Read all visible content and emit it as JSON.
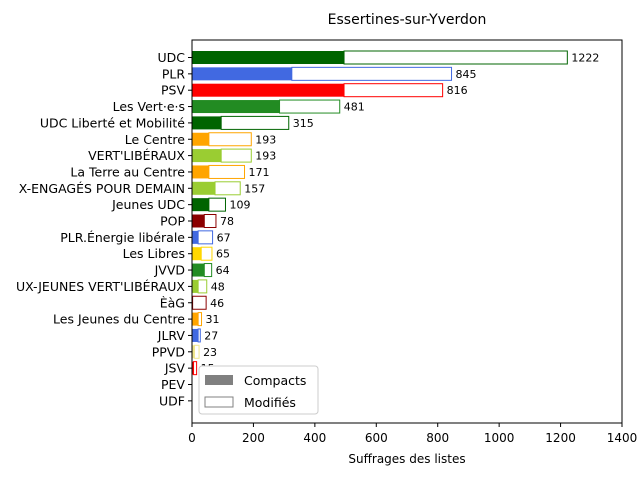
{
  "chart_data": {
    "type": "bar",
    "orientation": "horizontal",
    "stacked": "overlay",
    "title": "Essertines-sur-Yverdon",
    "xlabel": "Suffrages des listes",
    "ylabel": "",
    "xlim": [
      0,
      1400
    ],
    "xticks": [
      0,
      200,
      400,
      600,
      800,
      1000,
      1200,
      1400
    ],
    "grid": false,
    "legend": {
      "placement": "lower-left",
      "entries": [
        {
          "name": "Compacts",
          "style": "filled",
          "color": "#808080"
        },
        {
          "name": "Modifiés",
          "style": "outline",
          "color": "#808080"
        }
      ]
    },
    "categories": [
      "UDC",
      "PLR",
      "PSV",
      "Les Vert·e·s",
      "UDC Liberté et Mobilité",
      "Le Centre",
      "VERT'LIBÉRAUX",
      "La Terre au Centre",
      "X-ENGAGÉS POUR DEMAIN",
      "Jeunes UDC",
      "POP",
      "PLR.Énergie libérale",
      "Les Libres",
      "JVVD",
      "UX-JEUNES VERT'LIBÉRAUX",
      "ÈàG",
      "Les Jeunes du Centre",
      "JLRV",
      "PPVD",
      "JSV",
      "PEV",
      "UDF"
    ],
    "series": [
      {
        "name": "Compacts",
        "values": [
          495,
          325,
          495,
          285,
          95,
          55,
          95,
          55,
          75,
          55,
          40,
          20,
          30,
          40,
          20,
          2,
          20,
          20,
          8,
          5,
          0,
          0
        ]
      },
      {
        "name": "Modifiés",
        "values": [
          727,
          520,
          321,
          196,
          220,
          138,
          98,
          116,
          82,
          54,
          38,
          47,
          35,
          24,
          28,
          44,
          11,
          7,
          15,
          10,
          0,
          0
        ]
      }
    ],
    "totals": [
      1222,
      845,
      816,
      481,
      315,
      193,
      193,
      171,
      157,
      109,
      78,
      67,
      65,
      64,
      48,
      46,
      31,
      27,
      23,
      15,
      "",
      ""
    ],
    "colors": [
      "#006400",
      "#4169e1",
      "#ff0000",
      "#228b22",
      "#006400",
      "#ffa500",
      "#9acd32",
      "#ffa500",
      "#9acd32",
      "#006400",
      "#8b0000",
      "#4169e1",
      "#ffd700",
      "#228b22",
      "#9acd32",
      "#8b0000",
      "#ffa500",
      "#4169e1",
      "#f0e68c",
      "#ff0000",
      "#808080",
      "#808080"
    ]
  }
}
